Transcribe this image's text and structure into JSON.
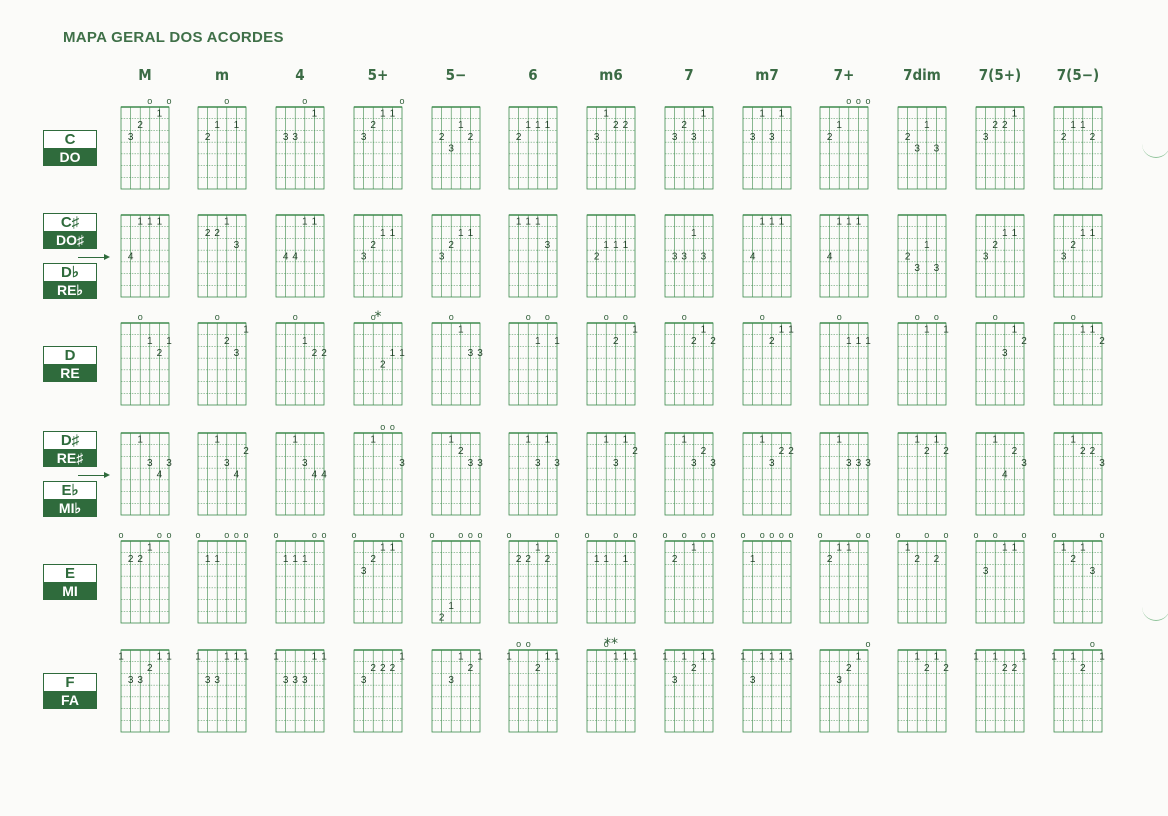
{
  "title": "MAPA GERAL DOS ACORDES",
  "columns": [
    "M",
    "m",
    "4",
    "5+",
    "5−",
    "6",
    "m6",
    "7",
    "m7",
    "7+",
    "7dim",
    "7(5+)",
    "7(5−)"
  ],
  "rows": [
    {
      "labels": [
        {
          "top": "C",
          "bottom": "DO"
        }
      ]
    },
    {
      "labels": [
        {
          "top": "C♯",
          "bottom": "DO♯"
        },
        {
          "top": "D♭",
          "bottom": "RE♭"
        }
      ]
    },
    {
      "labels": [
        {
          "top": "D",
          "bottom": "RE"
        }
      ]
    },
    {
      "labels": [
        {
          "top": "D♯",
          "bottom": "RE♯"
        },
        {
          "top": "E♭",
          "bottom": "MI♭"
        }
      ]
    },
    {
      "labels": [
        {
          "top": "E",
          "bottom": "MI"
        }
      ]
    },
    {
      "labels": [
        {
          "top": "F",
          "bottom": "FA"
        }
      ]
    }
  ],
  "fingerings": [
    [
      "x3201o",
      "x3202x",
      "x3301x",
      "x32110",
      "x3423x",
      "x3222x",
      "x3122x",
      "x3231x",
      "x3131x",
      "x32000",
      "x3424x",
      "x3221x",
      "x3223x"
    ],
    [
      "x4111x",
      "x2213x",
      "x4411x",
      "x4322x",
      "x4322x",
      "x1113x",
      "x4333x",
      "x4424x",
      "x4111x",
      "x4111x",
      "x4535x",
      "x4322x",
      "x4322x"
    ],
    [
      "xx0232",
      "xx0231",
      "xx0233",
      "xx0433",
      "xx0133",
      "xx0202",
      "xx0201",
      "xx0212",
      "xx0211",
      "xx0222",
      "xx0101",
      "xx0312",
      "xx0112"
    ],
    [
      "xx1343",
      "xx1342",
      "xx1344",
      "xx1003",
      "xx1233",
      "xx1313",
      "xx1312",
      "xx1323",
      "xx1322",
      "xx1333",
      "xx1212",
      "xx1423",
      "xx1223"
    ],
    [
      "022100",
      "022000",
      "022200",
      "032110",
      "076000",
      "022120",
      "022020",
      "020100",
      "020000",
      "021100",
      "012020",
      "030110",
      "012130"
    ],
    [
      "133211",
      "133111",
      "133311",
      "x32221",
      "xx3121",
      "100211",
      "xx0111",
      "131211",
      "131111",
      "xx3210",
      "xx1212",
      "1x1221",
      "1x1201"
    ]
  ],
  "annotations": {
    "row2_col3_mark": "*",
    "row5_col6_mark": "**"
  }
}
